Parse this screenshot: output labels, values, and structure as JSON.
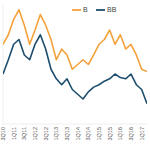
{
  "chart_data": {
    "type": "line",
    "categories": [
      "3Q10",
      null,
      "1Q11",
      null,
      "3Q11",
      null,
      "1Q12",
      null,
      "3Q12",
      null,
      "1Q13",
      null,
      "3Q13",
      null,
      "1Q14",
      null,
      "3Q14",
      null,
      "1Q15",
      null,
      "3Q15",
      null,
      "1Q16",
      null,
      "3Q16",
      null,
      "1Q17",
      null
    ],
    "series": [
      {
        "name": "B",
        "color": "#f4a23c",
        "values": [
          67,
          75,
          88,
          96,
          83,
          67,
          79,
          92,
          83,
          71,
          54,
          63,
          58,
          46,
          50,
          54,
          50,
          58,
          67,
          71,
          79,
          67,
          75,
          63,
          67,
          58,
          46,
          44
        ]
      },
      {
        "name": "BB",
        "color": "#1d4e6e",
        "values": [
          42,
          54,
          67,
          71,
          58,
          54,
          67,
          75,
          63,
          46,
          38,
          33,
          38,
          29,
          25,
          21,
          27,
          31,
          33,
          36,
          38,
          42,
          39,
          38,
          42,
          33,
          29,
          17
        ]
      }
    ],
    "ylim": [
      0,
      100
    ],
    "grid": false,
    "legend": "top",
    "tick_labels": "x"
  }
}
